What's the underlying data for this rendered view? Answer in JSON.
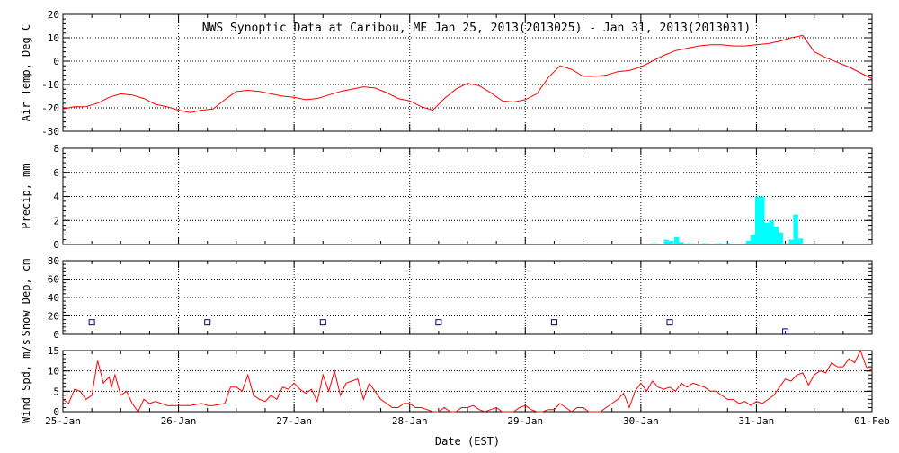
{
  "title": "NWS Synoptic Data at Caribou, ME   Jan 25, 2013(2013025) - Jan 31, 2013(2013031)",
  "xlabel": "Date (EST)",
  "x_tick_labels": [
    "25-Jan",
    "26-Jan",
    "27-Jan",
    "28-Jan",
    "29-Jan",
    "30-Jan",
    "31-Jan",
    "01-Feb"
  ],
  "colors": {
    "temp_line": "#ff0000",
    "precip_bar": "#00ffff",
    "snow_marker": "#000080",
    "wind_line": "#ff0000",
    "frame": "#000000"
  },
  "chart_data": [
    {
      "type": "line",
      "panel": "air_temp",
      "ylabel": "Air Temp, Deg C",
      "ylim": [
        -30,
        20
      ],
      "yticks": [
        -30,
        -20,
        -10,
        0,
        10,
        20
      ],
      "x_unit": "days since 25-Jan 00:00 EST",
      "xlim": [
        0,
        7
      ],
      "grid": true,
      "x": [
        0,
        0.1,
        0.2,
        0.3,
        0.4,
        0.5,
        0.6,
        0.7,
        0.8,
        0.9,
        1.0,
        1.1,
        1.2,
        1.3,
        1.4,
        1.5,
        1.6,
        1.7,
        1.8,
        1.9,
        2.0,
        2.1,
        2.2,
        2.3,
        2.4,
        2.5,
        2.6,
        2.7,
        2.8,
        2.9,
        3.0,
        3.1,
        3.2,
        3.3,
        3.4,
        3.5,
        3.6,
        3.7,
        3.8,
        3.9,
        4.0,
        4.1,
        4.2,
        4.3,
        4.4,
        4.5,
        4.6,
        4.7,
        4.8,
        4.9,
        5.0,
        5.1,
        5.2,
        5.3,
        5.4,
        5.5,
        5.6,
        5.7,
        5.8,
        5.9,
        6.0,
        6.1,
        6.2,
        6.3,
        6.4,
        6.5,
        6.6,
        6.7,
        6.8,
        6.9,
        7.0
      ],
      "y": [
        -20.5,
        -19.5,
        -19.5,
        -18,
        -15.5,
        -14,
        -14.5,
        -16,
        -18.5,
        -19.5,
        -21,
        -22,
        -21,
        -20.5,
        -16.5,
        -13,
        -12.5,
        -13,
        -14,
        -15,
        -15.5,
        -16.5,
        -16,
        -14.5,
        -13,
        -12,
        -11,
        -11.5,
        -13.5,
        -16,
        -17,
        -19.5,
        -21,
        -16,
        -12,
        -9.5,
        -10.5,
        -13.5,
        -17,
        -17.5,
        -16.5,
        -14,
        -7,
        -2,
        -3.5,
        -6.5,
        -6.5,
        -6,
        -4.5,
        -4,
        -2.5,
        0,
        2.5,
        4.5,
        5.5,
        6.5,
        7,
        7,
        6.5,
        6.5,
        7,
        7.5,
        8.5,
        10,
        11,
        4,
        1.5,
        -0.5,
        -2.5,
        -5,
        -7.5
      ]
    },
    {
      "type": "bar",
      "panel": "precip",
      "ylabel": "Precip, mm",
      "ylim": [
        0,
        8
      ],
      "yticks": [
        0,
        2,
        4,
        6,
        8
      ],
      "x_unit": "days since 25-Jan 00:00 EST",
      "xlim": [
        0,
        7
      ],
      "bar_width_days": 0.0417,
      "grid": true,
      "x": [
        5.12,
        5.22,
        5.26,
        5.31,
        5.35,
        5.42,
        5.55,
        5.68,
        5.76,
        5.93,
        5.97,
        6.01,
        6.05,
        6.09,
        6.13,
        6.17,
        6.21,
        6.3,
        6.34,
        6.38
      ],
      "values": [
        0.1,
        0.4,
        0.3,
        0.6,
        0.2,
        0.1,
        0.1,
        0.1,
        0.1,
        0.3,
        0.8,
        4.0,
        4.0,
        1.8,
        2.0,
        1.5,
        1.0,
        0.4,
        2.5,
        0.5
      ]
    },
    {
      "type": "scatter",
      "panel": "snow_depth",
      "ylabel": "Snow Dep, cm",
      "ylim": [
        0,
        80
      ],
      "yticks": [
        0,
        20,
        40,
        60,
        80
      ],
      "x_unit": "days since 25-Jan 00:00 EST",
      "xlim": [
        0,
        7
      ],
      "grid": true,
      "marker": "open-square",
      "x": [
        0.25,
        1.25,
        2.25,
        3.25,
        4.25,
        5.25,
        6.25
      ],
      "values": [
        13,
        13,
        13,
        13,
        13,
        13,
        3
      ]
    },
    {
      "type": "line",
      "panel": "wind_speed",
      "ylabel": "Wind Spd, m/s",
      "ylim": [
        0,
        15
      ],
      "yticks": [
        0,
        5,
        10,
        15
      ],
      "x_unit": "days since 25-Jan 00:00 EST",
      "xlim": [
        0,
        7
      ],
      "grid": true,
      "x": [
        0,
        0.05,
        0.1,
        0.15,
        0.2,
        0.25,
        0.3,
        0.35,
        0.4,
        0.42,
        0.45,
        0.5,
        0.55,
        0.6,
        0.65,
        0.7,
        0.75,
        0.8,
        0.85,
        0.9,
        0.95,
        1.0,
        1.1,
        1.2,
        1.25,
        1.3,
        1.4,
        1.45,
        1.5,
        1.55,
        1.6,
        1.65,
        1.7,
        1.75,
        1.8,
        1.85,
        1.9,
        1.95,
        2.0,
        2.05,
        2.1,
        2.15,
        2.2,
        2.25,
        2.3,
        2.35,
        2.4,
        2.45,
        2.5,
        2.55,
        2.6,
        2.65,
        2.7,
        2.75,
        2.8,
        2.85,
        2.9,
        2.95,
        3.0,
        3.05,
        3.1,
        3.15,
        3.2,
        3.25,
        3.3,
        3.35,
        3.4,
        3.45,
        3.5,
        3.55,
        3.6,
        3.65,
        3.7,
        3.75,
        3.8,
        3.85,
        3.9,
        3.95,
        4.0,
        4.05,
        4.1,
        4.15,
        4.2,
        4.25,
        4.3,
        4.35,
        4.4,
        4.45,
        4.5,
        4.55,
        4.6,
        4.65,
        4.7,
        4.75,
        4.8,
        4.85,
        4.9,
        4.95,
        5.0,
        5.05,
        5.1,
        5.15,
        5.2,
        5.25,
        5.3,
        5.35,
        5.4,
        5.45,
        5.5,
        5.55,
        5.6,
        5.65,
        5.7,
        5.75,
        5.8,
        5.85,
        5.9,
        5.95,
        6.0,
        6.05,
        6.1,
        6.15,
        6.2,
        6.25,
        6.3,
        6.35,
        6.4,
        6.45,
        6.5,
        6.55,
        6.6,
        6.65,
        6.7,
        6.75,
        6.8,
        6.85,
        6.9,
        6.95,
        7.0
      ],
      "y": [
        3,
        2,
        5.5,
        5,
        3,
        4,
        12.5,
        7,
        8.5,
        6,
        9,
        4,
        5,
        2,
        0,
        3,
        2,
        2.5,
        2,
        1.5,
        1.5,
        1.5,
        1.5,
        2,
        1.5,
        1.5,
        2,
        6,
        6,
        5,
        9,
        4,
        3,
        2.5,
        4,
        3,
        6,
        5.5,
        7,
        5.5,
        4.5,
        5.5,
        2.5,
        9,
        5,
        10,
        4,
        7,
        7.5,
        8,
        3,
        7,
        5,
        3,
        2,
        1,
        1,
        2,
        2,
        1,
        1,
        0.5,
        0,
        0,
        1,
        0,
        0,
        1,
        1,
        1.5,
        0.5,
        0,
        0.5,
        1,
        0,
        0,
        0,
        1,
        1.5,
        0.5,
        0,
        0,
        0.5,
        0.5,
        2,
        1,
        0,
        1,
        1,
        0,
        0,
        0,
        1,
        2,
        3,
        4.5,
        1,
        5,
        7,
        5,
        7.5,
        6,
        5.5,
        6,
        5,
        7,
        6,
        7,
        6.5,
        6,
        5,
        5,
        4,
        3,
        3,
        2,
        2.5,
        1.5,
        2.5,
        2,
        3,
        4,
        6,
        8,
        7.5,
        9,
        9.5,
        6.5,
        9,
        10,
        9.5,
        12,
        11,
        11,
        13,
        12,
        15,
        11,
        10
      ]
    }
  ]
}
